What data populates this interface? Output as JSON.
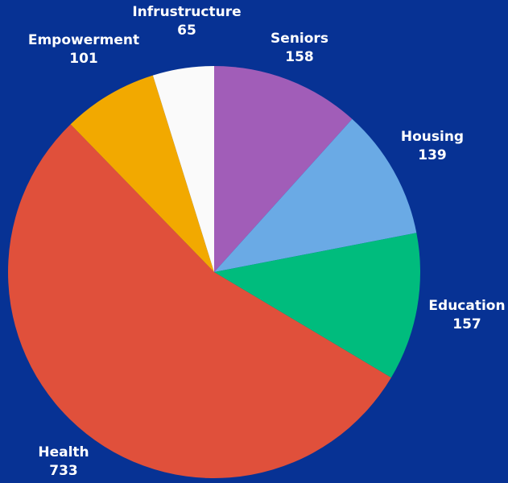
{
  "chart_data": {
    "type": "pie",
    "title": "",
    "background": "#073294",
    "label_color": "#ffffff",
    "start_angle_deg": 0,
    "direction": "clockwise",
    "slices": [
      {
        "label": "Seniors",
        "value": 158,
        "color": "#A15DB8"
      },
      {
        "label": "Housing",
        "value": 139,
        "color": "#6AAAE5"
      },
      {
        "label": "Education",
        "value": 157,
        "color": "#00BC7D"
      },
      {
        "label": "Health",
        "value": 733,
        "color": "#E0503B"
      },
      {
        "label": "Empowerment",
        "value": 101,
        "color": "#F2A900"
      },
      {
        "label": "Infrustructure",
        "value": 65,
        "color": "#FAFAFA"
      }
    ]
  }
}
